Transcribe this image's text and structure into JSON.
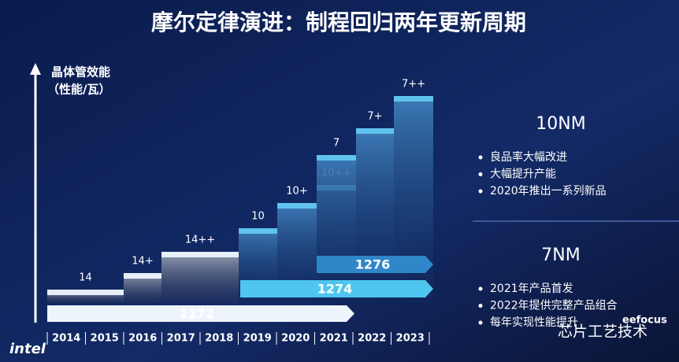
{
  "title": "摩尔定律演进：制程回归两年更新周期",
  "y_axis": {
    "lines": [
      "晶体管效能",
      "（性能/瓦）"
    ]
  },
  "years": [
    "2014",
    "2015",
    "2016",
    "2017",
    "2018",
    "2019",
    "2020",
    "2021",
    "2022",
    "2023"
  ],
  "steps": [
    "14",
    "14+",
    "14++",
    "10",
    "10+",
    "10++",
    "7",
    "7+",
    "7++"
  ],
  "processes": [
    "1272",
    "1274",
    "1276"
  ],
  "sections": [
    {
      "heading": "10NM",
      "bullets": [
        "良品率大幅改进",
        "大幅提升产能",
        "2020年推出一系列新品"
      ]
    },
    {
      "heading": "7NM",
      "bullets": [
        "2021年产品首发",
        "2022年提供完整产品组合",
        "每年实现性能提升"
      ]
    }
  ],
  "logo": "intel",
  "watermark": {
    "brand": "eefocus",
    "account": "芯片工艺技术"
  }
}
